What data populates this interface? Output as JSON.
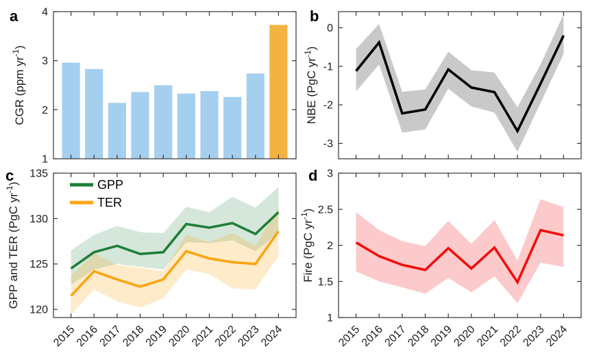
{
  "figure": {
    "background": "#ffffff",
    "ink_color": "#1a1a1a",
    "spine_color": "#333333",
    "x_categories": [
      "2015",
      "2016",
      "2017",
      "2018",
      "2019",
      "2020",
      "2021",
      "2022",
      "2023",
      "2024"
    ]
  },
  "chart_data": [
    {
      "id": "a",
      "panel_label": "a",
      "type": "bar",
      "ylabel": {
        "pre": "CGR (ppm yr",
        "sup": "-1",
        "post": ")"
      },
      "ylim": [
        1,
        4
      ],
      "yticks": [
        1,
        2,
        3,
        4
      ],
      "ytick_labels": [
        "1",
        "2",
        "3",
        "4"
      ],
      "categories": [
        "2015",
        "2016",
        "2017",
        "2018",
        "2019",
        "2020",
        "2021",
        "2022",
        "2023",
        "2024"
      ],
      "values": [
        2.96,
        2.83,
        2.14,
        2.36,
        2.5,
        2.33,
        2.38,
        2.26,
        2.74,
        3.73
      ],
      "bar_color": "#A5CFEF",
      "highlight_color": "#F2B340",
      "highlight_index": 9,
      "highlight_year": "2024",
      "show_xlabels": false
    },
    {
      "id": "b",
      "panel_label": "b",
      "type": "line",
      "ylabel": {
        "pre": "NBE (PgC yr",
        "sup": "-1",
        "post": ")"
      },
      "ylim": [
        -3.4,
        0.42
      ],
      "yticks": [
        0,
        -1,
        -2,
        -3
      ],
      "ytick_labels": [
        "0",
        "-1",
        "-2",
        "-3"
      ],
      "categories": [
        "2015",
        "2016",
        "2017",
        "2018",
        "2019",
        "2020",
        "2021",
        "2022",
        "2023",
        "2024"
      ],
      "series": [
        {
          "name": "NBE",
          "color": "#000000",
          "band_color": "rgba(0,0,0,0.21)",
          "values": [
            -1.12,
            -0.38,
            -2.22,
            -2.12,
            -1.08,
            -1.55,
            -1.67,
            -2.68,
            -1.45,
            -0.2
          ],
          "band_upper": [
            -0.55,
            0.1,
            -1.66,
            -1.6,
            -0.62,
            -1.1,
            -1.16,
            -2.06,
            -0.95,
            0.35
          ],
          "band_lower": [
            -1.65,
            -0.95,
            -2.72,
            -2.64,
            -1.58,
            -2.04,
            -2.2,
            -3.22,
            -1.95,
            -0.68
          ]
        }
      ],
      "show_xlabels": false
    },
    {
      "id": "c",
      "panel_label": "c",
      "type": "line",
      "ylabel": {
        "pre": "GPP and TER (PgC yr",
        "sup": "-1",
        "post": ")"
      },
      "ylim": [
        119.1,
        135
      ],
      "yticks": [
        120,
        125,
        130,
        135
      ],
      "ytick_labels": [
        "120",
        "125",
        "130",
        "135"
      ],
      "categories": [
        "2015",
        "2016",
        "2017",
        "2018",
        "2019",
        "2020",
        "2021",
        "2022",
        "2023",
        "2024"
      ],
      "series": [
        {
          "name": "GPP",
          "color": "#1E7E39",
          "band_color": "rgba(30,126,57,0.19)",
          "values": [
            124.5,
            126.3,
            127.0,
            126.1,
            126.3,
            129.4,
            129.0,
            129.5,
            128.3,
            130.7
          ],
          "band_upper": [
            126.5,
            128.2,
            129.2,
            128.5,
            128.4,
            131.3,
            130.7,
            132.4,
            131.2,
            133.5
          ],
          "band_lower": [
            122.7,
            124.4,
            125.0,
            124.7,
            124.4,
            127.4,
            127.3,
            127.6,
            126.4,
            128.4
          ]
        },
        {
          "name": "TER",
          "color": "#FBA50F",
          "band_color": "rgba(251,165,15,0.22)",
          "values": [
            121.5,
            124.2,
            123.3,
            122.5,
            123.3,
            126.4,
            125.6,
            125.2,
            125.0,
            128.6
          ],
          "band_upper": [
            123.7,
            126.2,
            124.9,
            124.6,
            124.2,
            128.2,
            127.4,
            128.4,
            127.0,
            131.3
          ],
          "band_lower": [
            119.4,
            122.2,
            120.9,
            120.2,
            121.2,
            124.4,
            123.9,
            122.3,
            122.2,
            125.9
          ]
        }
      ],
      "legend": [
        {
          "label": "GPP",
          "color": "#1E7E39"
        },
        {
          "label": "TER",
          "color": "#FBA50F"
        }
      ],
      "legend_position": "top-left",
      "show_xlabels": true
    },
    {
      "id": "d",
      "panel_label": "d",
      "type": "line",
      "ylabel": {
        "pre": "Fire (PgC yr",
        "sup": "-1",
        "post": ")"
      },
      "ylim": [
        1,
        3
      ],
      "yticks": [
        1,
        1.5,
        2,
        2.5,
        3
      ],
      "ytick_labels": [
        "1",
        "1.5",
        "2",
        "2.5",
        "3"
      ],
      "categories": [
        "2015",
        "2016",
        "2017",
        "2018",
        "2019",
        "2020",
        "2021",
        "2022",
        "2023",
        "2024"
      ],
      "series": [
        {
          "name": "Fire",
          "color": "#F20D0D",
          "band_color": "rgba(242,13,13,0.22)",
          "values": [
            2.04,
            1.85,
            1.73,
            1.66,
            1.96,
            1.68,
            1.97,
            1.49,
            2.21,
            2.14
          ],
          "band_upper": [
            2.46,
            2.21,
            2.06,
            1.99,
            2.34,
            2.02,
            2.35,
            1.79,
            2.64,
            2.53
          ],
          "band_lower": [
            1.64,
            1.5,
            1.42,
            1.33,
            1.55,
            1.35,
            1.57,
            1.2,
            1.76,
            1.7
          ]
        }
      ],
      "show_xlabels": true
    }
  ]
}
